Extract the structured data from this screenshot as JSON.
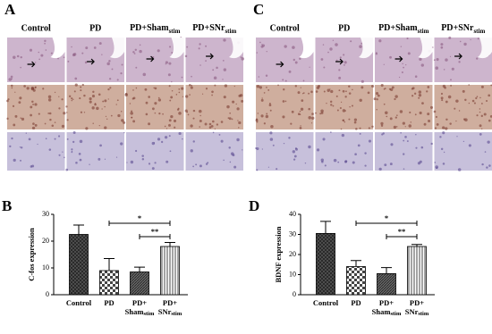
{
  "image_panels": [
    {
      "label": "A",
      "columns": [
        "Control",
        "PD",
        {
          "main": "PD+Sham",
          "sub": "stim"
        },
        {
          "main": "PD+SNr",
          "sub": "stim"
        }
      ]
    },
    {
      "label": "C",
      "columns": [
        "Control",
        "PD",
        {
          "main": "PD+Sham",
          "sub": "stim"
        },
        {
          "main": "PD+SNr",
          "sub": "stim"
        }
      ]
    }
  ],
  "chart_data": [
    {
      "type": "bar",
      "panel_label": "B",
      "y_label": "C-fos expression",
      "categories": [
        "Control",
        "PD",
        {
          "line1": "PD+",
          "line2": "Sham",
          "sub": "stim"
        },
        {
          "line1": "PD+",
          "line2": "SNr",
          "sub": "stim"
        }
      ],
      "values": [
        22.5,
        9,
        8.5,
        18
      ],
      "errors": [
        3.5,
        4.5,
        1.8,
        1.5
      ],
      "ylim": [
        0,
        30
      ],
      "yticks": [
        0,
        10,
        20,
        30
      ],
      "annotations": [
        {
          "text": "*",
          "from": 1,
          "to": 3
        },
        {
          "text": "**",
          "from": 2,
          "to": 3
        }
      ]
    },
    {
      "type": "bar",
      "panel_label": "D",
      "y_label": "BDNF expression",
      "categories": [
        "Control",
        "PD",
        {
          "line1": "PD+",
          "line2": "Sham",
          "sub": "stim"
        },
        {
          "line1": "PD+",
          "line2": "SNr",
          "sub": "stim"
        }
      ],
      "values": [
        30.5,
        14,
        10.5,
        24
      ],
      "errors": [
        6,
        3,
        3,
        1
      ],
      "ylim": [
        0,
        40
      ],
      "yticks": [
        0,
        10,
        20,
        30,
        40
      ],
      "annotations": [
        {
          "text": "*",
          "from": 1,
          "to": 3
        },
        {
          "text": "**",
          "from": 2,
          "to": 3
        }
      ]
    }
  ]
}
